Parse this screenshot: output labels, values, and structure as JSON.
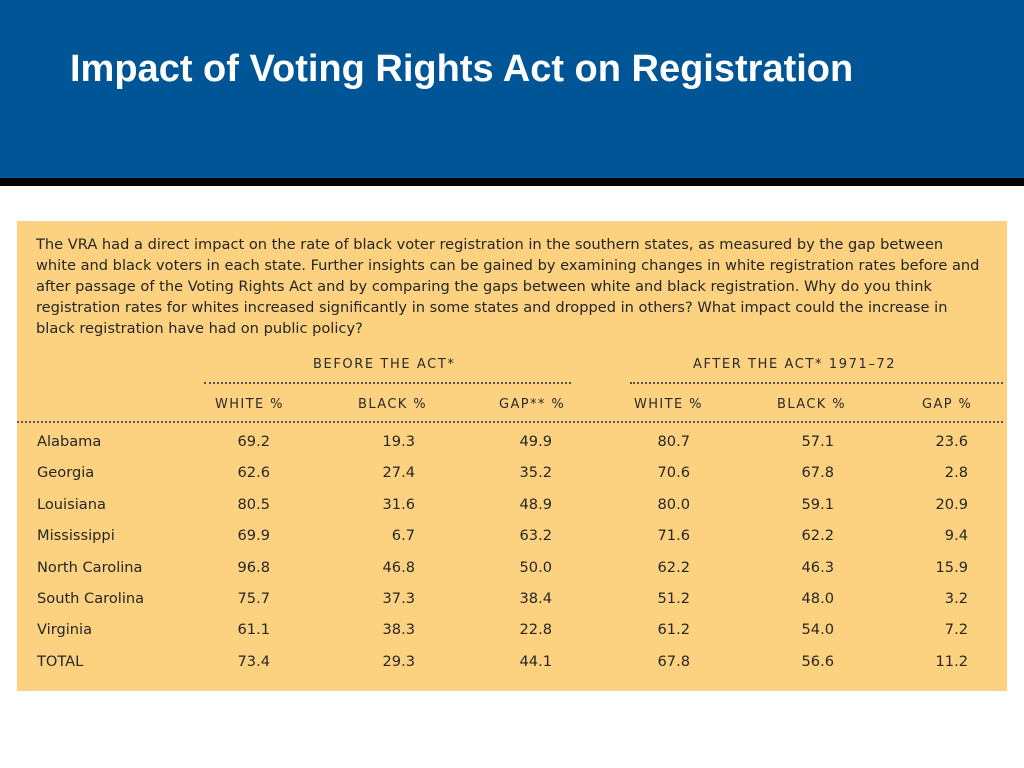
{
  "title": "Impact of Voting Rights Act on Registration",
  "intro_text": "The VRA had a direct impact on the rate of black voter registration in the southern states, as measured by the gap between white and black voters in each state. Further insights can be gained by examining changes in white registration rates before and after passage of the Voting Rights Act and by comparing the gaps between white and black registration. Why do you think registration rates for whites increased significantly in some states and dropped in others? What impact could the increase in black registration have had on public policy?",
  "table": {
    "group_before": "BEFORE THE ACT*",
    "group_after": "AFTER THE ACT* 1971–72",
    "headers": [
      "WHITE %",
      "BLACK %",
      "GAP** %",
      "WHITE %",
      "BLACK %",
      "GAP %"
    ],
    "rows": [
      {
        "state": "Alabama",
        "values": [
          "69.2",
          "19.3",
          "49.9",
          "80.7",
          "57.1",
          "23.6"
        ]
      },
      {
        "state": "Georgia",
        "values": [
          "62.6",
          "27.4",
          "35.2",
          "70.6",
          "67.8",
          "2.8"
        ]
      },
      {
        "state": "Louisiana",
        "values": [
          "80.5",
          "31.6",
          "48.9",
          "80.0",
          "59.1",
          "20.9"
        ]
      },
      {
        "state": "Mississippi",
        "values": [
          "69.9",
          "6.7",
          "63.2",
          "71.6",
          "62.2",
          "9.4"
        ]
      },
      {
        "state": "North Carolina",
        "values": [
          "96.8",
          "46.8",
          "50.0",
          "62.2",
          "46.3",
          "15.9"
        ]
      },
      {
        "state": "South Carolina",
        "values": [
          "75.7",
          "37.3",
          "38.4",
          "51.2",
          "48.0",
          "3.2"
        ]
      },
      {
        "state": "Virginia",
        "values": [
          "61.1",
          "38.3",
          "22.8",
          "61.2",
          "54.0",
          "7.2"
        ]
      },
      {
        "state": "TOTAL",
        "values": [
          "73.4",
          "29.3",
          "44.1",
          "67.8",
          "56.6",
          "11.2"
        ]
      }
    ]
  },
  "colors": {
    "title_bar": "#005596",
    "panel": "#fcd17f",
    "title_text": "#ffffff"
  }
}
